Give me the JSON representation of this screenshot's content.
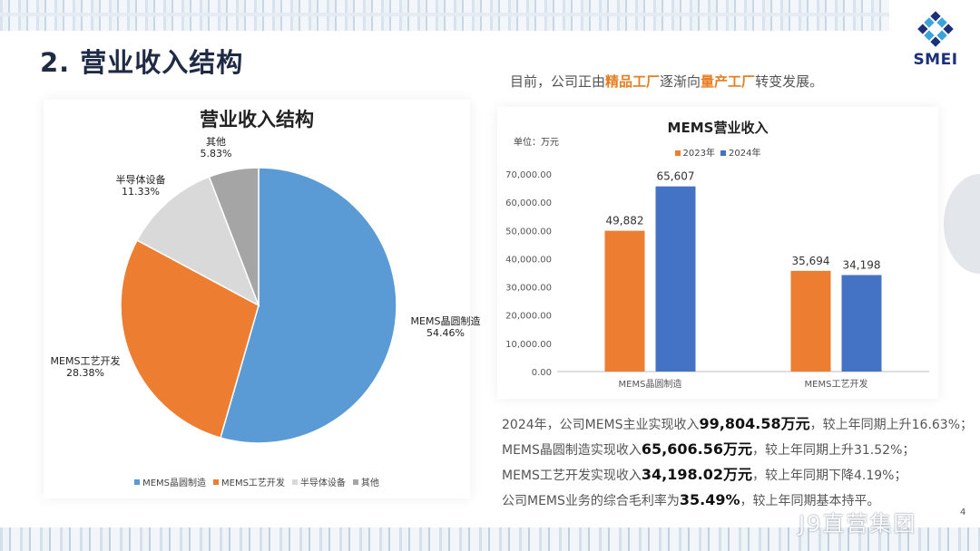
{
  "page": {
    "title": "2. 营业收入结构",
    "page_number": "4",
    "watermark": "J9直营集团"
  },
  "logo": {
    "text": "SMEI",
    "colors": {
      "blue": "#1b2f7a",
      "cyan": "#3aa3d8"
    }
  },
  "intro": {
    "prefix": "目前，公司正由",
    "highlight1": "精品工厂",
    "middle": "逐渐向",
    "highlight2": "量产工厂",
    "suffix": "转变发展。",
    "highlight_color": "#e57e23"
  },
  "chart_data": [
    {
      "type": "pie",
      "title": "营业收入结构",
      "slices": [
        {
          "label": "MEMS晶圆制造",
          "value": 54.46,
          "display": "54.46%",
          "color": "#5b9bd5"
        },
        {
          "label": "MEMS工艺开发",
          "value": 28.38,
          "display": "28.38%",
          "color": "#ed7d31"
        },
        {
          "label": "半导体设备",
          "value": 11.33,
          "display": "11.33%",
          "color": "#d9d9d9"
        },
        {
          "label": "其他",
          "value": 5.83,
          "display": "5.83%",
          "color": "#a5a5a5"
        }
      ],
      "legend_position": "bottom"
    },
    {
      "type": "bar",
      "title": "MEMS营业收入",
      "unit_label": "单位：万元",
      "categories": [
        "MEMS晶圆制造",
        "MEMS工艺开发"
      ],
      "series": [
        {
          "name": "2023年",
          "values": [
            49882,
            35694
          ],
          "labels": [
            "49,882",
            "35,694"
          ],
          "color": "#ed7d31"
        },
        {
          "name": "2024年",
          "values": [
            65607,
            34198
          ],
          "labels": [
            "65,607",
            "34,198"
          ],
          "color": "#4472c4"
        }
      ],
      "ylim": [
        0,
        70000
      ],
      "yticks": [
        "0.00",
        "10,000.00",
        "20,000.00",
        "30,000.00",
        "40,000.00",
        "50,000.00",
        "60,000.00",
        "70,000.00"
      ],
      "ytick_values": [
        0,
        10000,
        20000,
        30000,
        40000,
        50000,
        60000,
        70000
      ],
      "grid": false,
      "legend_position": "top"
    }
  ],
  "stats": [
    {
      "pre": "2024年，公司MEMS主业实现收入",
      "num": "99,804.58万元",
      "post": "，较上年同期上升16.63%；"
    },
    {
      "pre": "MEMS晶圆制造实现收入",
      "num": "65,606.56万元",
      "post": "，较上年同期上升31.52%；"
    },
    {
      "pre": "MEMS工艺开发实现收入",
      "num": "34,198.02万元",
      "post": "，较上年同期下降4.19%；"
    },
    {
      "pre": "公司MEMS业务的综合毛利率为",
      "num": "35.49%",
      "post": "，较上年同期基本持平。"
    }
  ]
}
